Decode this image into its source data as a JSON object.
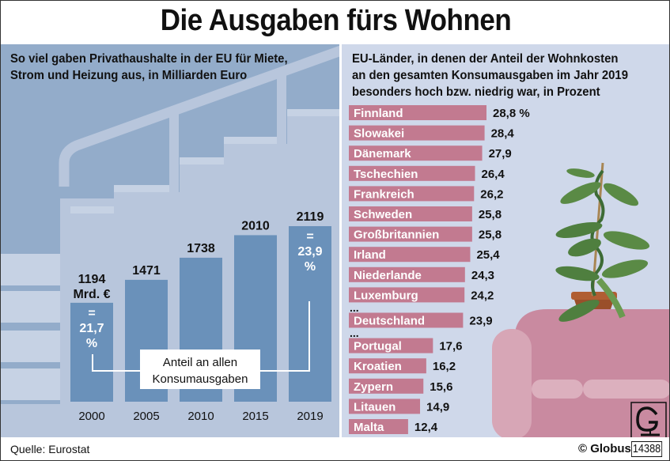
{
  "title": "Die Ausgaben fürs Wohnen",
  "source": "Quelle: Eurostat",
  "credit": "© Globus",
  "doc_number": "14388",
  "colors": {
    "left_bg": "#b8c6dc",
    "bar_blue": "#6a91ba",
    "right_bg": "#cfd8ea",
    "bar_pink": "#c27a90",
    "sofa": "#c98aa0"
  },
  "chart_data": [
    {
      "type": "bar",
      "title": "So viel gaben Privathaushalte in der EU für Miete, Strom und Heizung aus, in Milliarden Euro",
      "subtitle_lines": [
        "So viel gaben Privathaushalte in der EU für Miete,",
        "Strom und Heizung aus, in Milliarden Euro"
      ],
      "categories": [
        "2000",
        "2005",
        "2010",
        "2015",
        "2019"
      ],
      "values": [
        1194,
        1471,
        1738,
        2010,
        2119
      ],
      "value_labels": [
        "1194",
        "1471",
        "1738",
        "2010",
        "2119"
      ],
      "unit_label": "Mrd. €",
      "annotations": [
        {
          "category": "2000",
          "lines": [
            "=",
            "21,7",
            "%"
          ],
          "value": 21.7
        },
        {
          "category": "2019",
          "lines": [
            "=",
            "23,9",
            "%"
          ],
          "value": 23.9
        }
      ],
      "callout_lines": [
        "Anteil an allen",
        "Konsumausgaben"
      ],
      "xlabel": "",
      "ylabel": "",
      "ylim": [
        0,
        2300
      ],
      "grid": false
    },
    {
      "type": "bar",
      "orientation": "horizontal",
      "title": "EU-Länder, in denen der Anteil der Wohnkosten an den gesamten Konsumausgaben im Jahr 2019 besonders hoch bzw. niedrig war, in Prozent",
      "subtitle_lines": [
        "EU-Länder, in denen der Anteil der Wohnkosten",
        "an den gesamten Konsumausgaben im Jahr 2019",
        "besonders hoch bzw. niedrig war, in Prozent"
      ],
      "categories": [
        "Finnland",
        "Slowakei",
        "Dänemark",
        "Tschechien",
        "Frankreich",
        "Schweden",
        "Großbritannien",
        "Irland",
        "Niederlande",
        "Luxemburg",
        "Deutschland",
        "Portugal",
        "Kroatien",
        "Zypern",
        "Litauen",
        "Malta"
      ],
      "values": [
        28.8,
        28.4,
        27.9,
        26.4,
        26.2,
        25.8,
        25.8,
        25.4,
        24.3,
        24.2,
        23.9,
        17.6,
        16.2,
        15.6,
        14.9,
        12.4
      ],
      "value_labels": [
        "28,8 %",
        "28,4",
        "27,9",
        "26,4",
        "26,2",
        "25,8",
        "25,8",
        "25,4",
        "24,3",
        "24,2",
        "23,9",
        "17,6",
        "16,2",
        "15,6",
        "14,9",
        "12,4"
      ],
      "gap_markers": [
        {
          "after": "Luxemburg",
          "text": "..."
        },
        {
          "after": "Deutschland",
          "text": "..."
        }
      ],
      "xlabel": "",
      "ylabel": "",
      "xlim": [
        0,
        30
      ],
      "grid": false
    }
  ]
}
